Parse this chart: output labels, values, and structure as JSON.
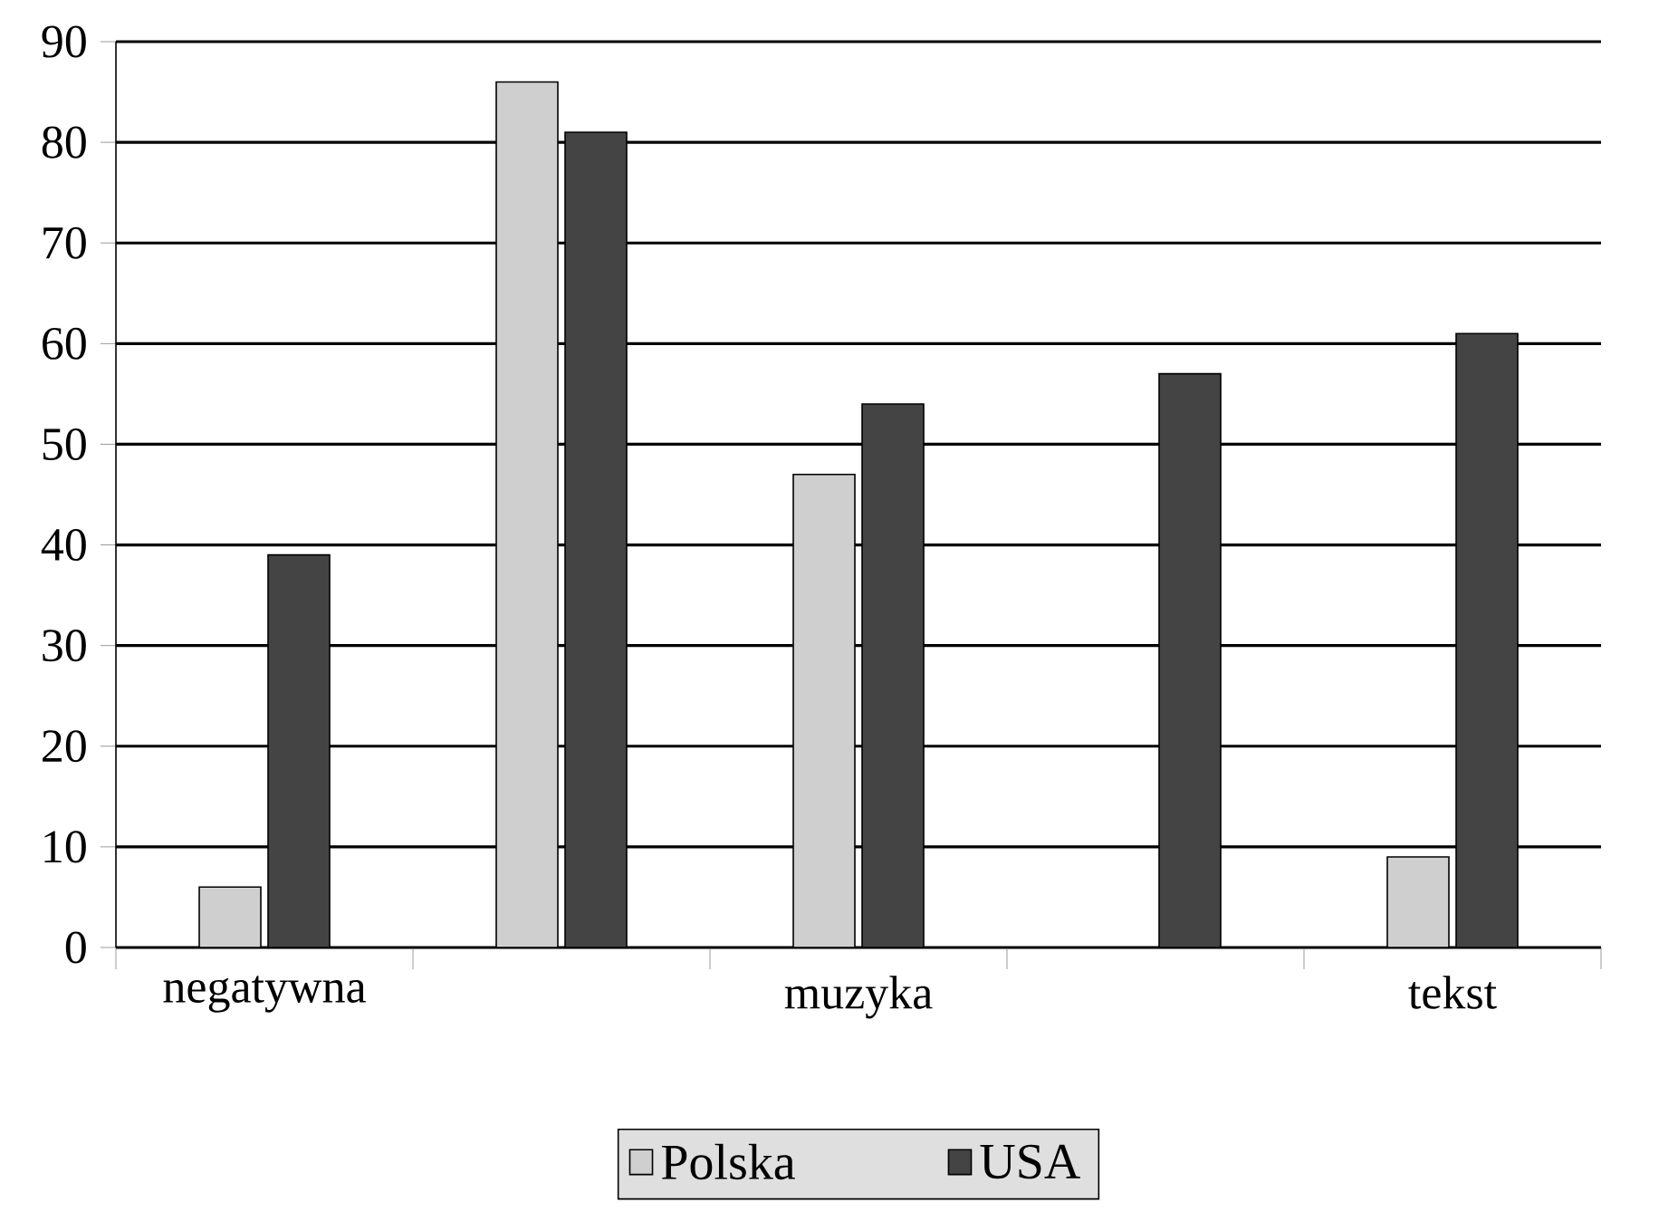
{
  "chart_data": {
    "type": "bar",
    "categories": [
      "negatywna",
      null,
      "muzyka",
      null,
      "tekst"
    ],
    "series": [
      {
        "name": "Polska",
        "color": "#cfcfcf",
        "values": [
          6,
          86,
          47,
          null,
          9
        ]
      },
      {
        "name": "USA",
        "color": "#444444",
        "values": [
          39,
          81,
          54,
          57,
          61
        ]
      }
    ],
    "ylim": [
      0,
      90
    ],
    "yticks": [
      0,
      10,
      20,
      30,
      40,
      50,
      60,
      70,
      80,
      90
    ],
    "grid": "y",
    "legend": "bottom"
  }
}
